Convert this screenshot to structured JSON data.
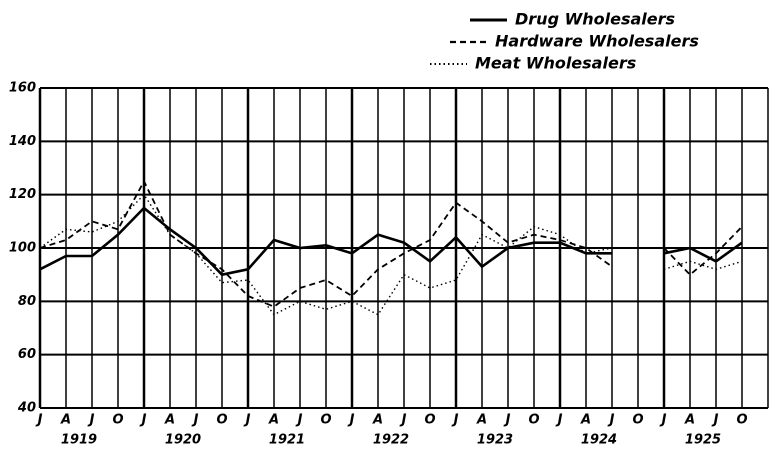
{
  "chart_data": {
    "type": "line",
    "categories": [
      "J",
      "A",
      "J",
      "O",
      "J",
      "A",
      "J",
      "O",
      "J",
      "A",
      "J",
      "O",
      "J",
      "A",
      "J",
      "O",
      "J",
      "A",
      "J",
      "O",
      "J",
      "A",
      "J",
      "O",
      "J",
      "A",
      "J",
      "O"
    ],
    "years": [
      "1919",
      "1920",
      "1921",
      "1922",
      "1923",
      "1924",
      "1925"
    ],
    "series": [
      {
        "name": "Drug Wholesalers",
        "color": "#000000",
        "dash": "solid",
        "values": [
          92,
          97,
          97,
          105,
          115,
          107,
          100,
          90,
          92,
          103,
          100,
          101,
          98,
          105,
          102,
          95,
          104,
          93,
          100,
          102,
          102,
          98,
          98,
          null,
          98,
          100,
          95,
          102
        ]
      },
      {
        "name": "Hardware Wholesalers",
        "color": "#000000",
        "dash": "dashed",
        "values": [
          100,
          103,
          110,
          107,
          125,
          105,
          98,
          92,
          82,
          78,
          85,
          88,
          82,
          92,
          98,
          103,
          117,
          110,
          102,
          105,
          103,
          100,
          93,
          null,
          100,
          90,
          98,
          108
        ]
      },
      {
        "name": "Meat Wholesalers",
        "color": "#000000",
        "dash": "dotted",
        "values": [
          100,
          107,
          106,
          110,
          120,
          105,
          98,
          87,
          88,
          75,
          80,
          77,
          80,
          75,
          90,
          85,
          88,
          105,
          100,
          108,
          105,
          98,
          100,
          null,
          92,
          95,
          92,
          95
        ]
      }
    ],
    "ylim": [
      40,
      160
    ],
    "yticks": [
      40,
      60,
      80,
      100,
      120,
      140,
      160
    ],
    "grid": true,
    "legend": "top-right"
  }
}
